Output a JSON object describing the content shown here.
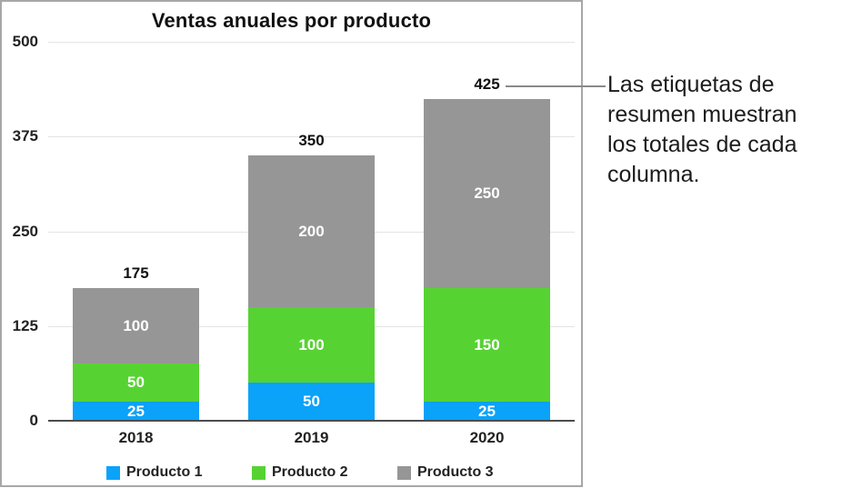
{
  "chart_data": {
    "type": "bar",
    "stacked": true,
    "title": "Ventas anuales por producto",
    "categories": [
      "2018",
      "2019",
      "2020"
    ],
    "series": [
      {
        "name": "Producto 1",
        "color": "#0ba2fa",
        "values": [
          25,
          50,
          25
        ]
      },
      {
        "name": "Producto 2",
        "color": "#57d233",
        "values": [
          50,
          100,
          150
        ]
      },
      {
        "name": "Producto 3",
        "color": "#969696",
        "values": [
          100,
          200,
          250
        ]
      }
    ],
    "totals": [
      175,
      350,
      425
    ],
    "ylim": [
      0,
      500
    ],
    "yticks": [
      0,
      125,
      250,
      375,
      500
    ],
    "grid": true,
    "legend_position": "bottom",
    "segment_label_color": "#ffffff",
    "callout_total": "425"
  },
  "annotation": {
    "text": "Las etiquetas de resumen muestran los totales de cada columna."
  }
}
